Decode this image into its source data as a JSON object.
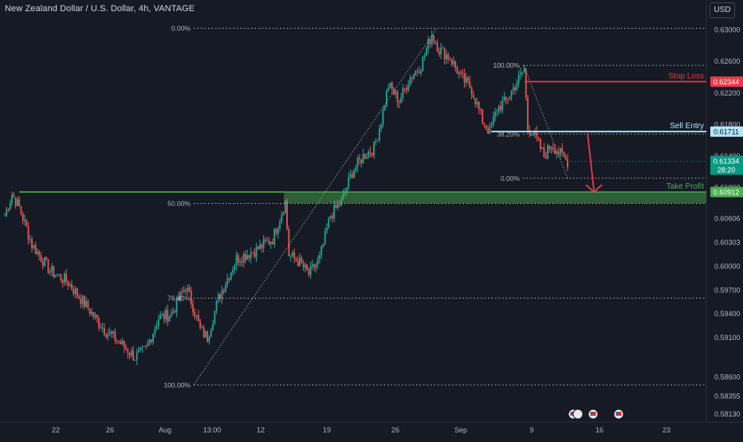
{
  "header": {
    "title": "New Zealand Dollar / U.S. Dollar, 4h, VANTAGE",
    "currency": "USD"
  },
  "colors": {
    "background": "#161a25",
    "up": "#26a69a",
    "down": "#ef5350",
    "text": "#b2b5be",
    "stop_loss": "#f23645",
    "sell_entry": "#b3e5fc",
    "take_profit": "#4caf50",
    "current_price": "#089981"
  },
  "chart_data": {
    "type": "candlestick",
    "y_axis": {
      "range": [
        0.581,
        0.631
      ],
      "ticks": [
        "0.63000",
        "0.62600",
        "0.62200",
        "0.61800",
        "0.61400",
        "0.61000",
        "0.60606",
        "0.60303",
        "0.60000",
        "0.59700",
        "0.59400",
        "0.59100",
        "0.58600",
        "0.58355",
        "0.58130"
      ]
    },
    "x_axis": {
      "ticks": [
        "22",
        "26",
        "Aug",
        "13:00",
        "12",
        "19",
        "26",
        "Sep",
        "9",
        "16",
        "23"
      ]
    },
    "grid": false,
    "fib_retracement_1": {
      "levels": [
        {
          "label": "0.00%",
          "price": 0.6302
        },
        {
          "label": "50.00%",
          "price": 0.608
        },
        {
          "label": "76.40%",
          "price": 0.596
        },
        {
          "label": "100.00%",
          "price": 0.585
        }
      ]
    },
    "fib_retracement_2": {
      "levels": [
        {
          "label": "100.00%",
          "price": 0.6255
        },
        {
          "label": "38.20%",
          "price": 0.6168
        },
        {
          "label": "0.00%",
          "price": 0.6112
        }
      ]
    },
    "trade_levels": {
      "stop_loss": {
        "label": "Stop Loss",
        "price": 0.62344,
        "price_text": "0.62344"
      },
      "sell_entry": {
        "label": "Sell Entry",
        "price": 0.61711,
        "price_text": "0.61711"
      },
      "take_profit": {
        "label": "Take Profit",
        "price": 0.60912,
        "price_text": "0.60912"
      }
    },
    "current_price": {
      "price": 0.61334,
      "price_text": "0.61334",
      "countdown": "28:20"
    },
    "support_line_price": 0.60945,
    "waypoints": [
      [
        0,
        0.6065
      ],
      [
        4,
        0.6092
      ],
      [
        8,
        0.6075
      ],
      [
        15,
        0.6028
      ],
      [
        25,
        0.5995
      ],
      [
        35,
        0.598
      ],
      [
        45,
        0.595
      ],
      [
        55,
        0.592
      ],
      [
        63,
        0.5905
      ],
      [
        72,
        0.5885
      ],
      [
        78,
        0.5895
      ],
      [
        85,
        0.5935
      ],
      [
        92,
        0.594
      ],
      [
        100,
        0.5975
      ],
      [
        104,
        0.595
      ],
      [
        108,
        0.592
      ],
      [
        112,
        0.591
      ],
      [
        118,
        0.596
      ],
      [
        128,
        0.601
      ],
      [
        138,
        0.602
      ],
      [
        148,
        0.6035
      ],
      [
        155,
        0.6082
      ],
      [
        157,
        0.6015
      ],
      [
        163,
        0.6005
      ],
      [
        168,
        0.599
      ],
      [
        174,
        0.601
      ],
      [
        180,
        0.6065
      ],
      [
        186,
        0.6082
      ],
      [
        192,
        0.612
      ],
      [
        198,
        0.614
      ],
      [
        204,
        0.615
      ],
      [
        208,
        0.6185
      ],
      [
        212,
        0.623
      ],
      [
        218,
        0.621
      ],
      [
        224,
        0.624
      ],
      [
        230,
        0.6255
      ],
      [
        236,
        0.6295
      ],
      [
        240,
        0.6275
      ],
      [
        246,
        0.6265
      ],
      [
        252,
        0.624
      ],
      [
        258,
        0.6225
      ],
      [
        264,
        0.6185
      ],
      [
        268,
        0.617
      ],
      [
        272,
        0.62
      ],
      [
        277,
        0.621
      ],
      [
        282,
        0.623
      ],
      [
        287,
        0.625
      ],
      [
        289,
        0.6175
      ],
      [
        292,
        0.617
      ],
      [
        298,
        0.614
      ],
      [
        302,
        0.6155
      ],
      [
        306,
        0.6145
      ],
      [
        311,
        0.6133
      ]
    ],
    "candle_count": 312
  },
  "events": [
    "flag-icon",
    "flag-icon",
    "flag-icon"
  ]
}
